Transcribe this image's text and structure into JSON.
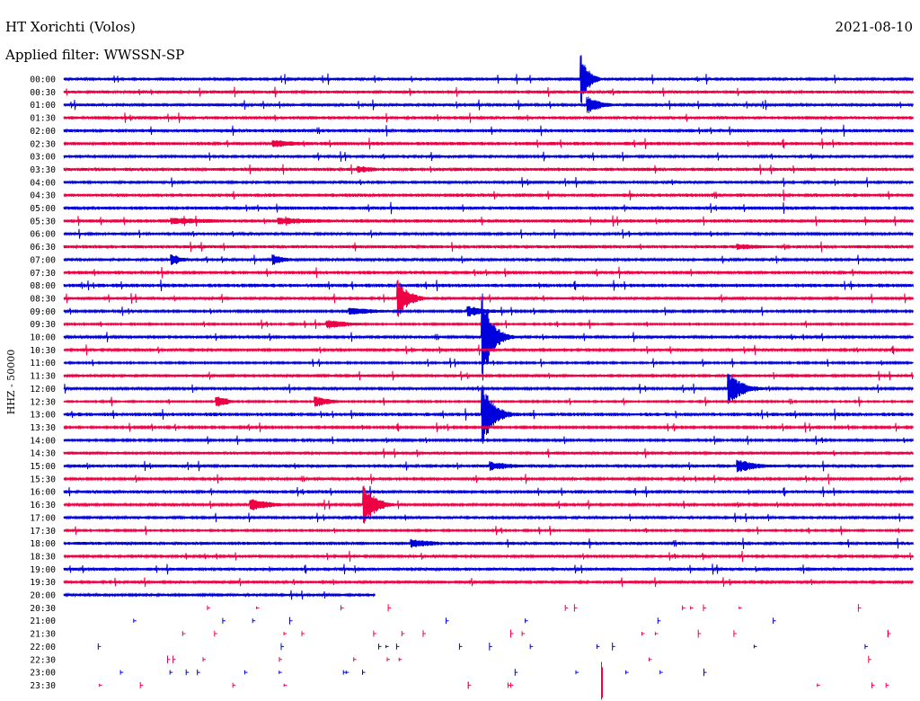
{
  "header": {
    "station": "HT Xorichti (Volos)",
    "date": "2021-08-10",
    "filter": "Applied filter: WWSSN-SP"
  },
  "channel_label": "HHZ - 50000",
  "colors": {
    "even_row": "#0000dd",
    "odd_row": "#ee0044",
    "background": "#ffffff",
    "text": "#000000"
  },
  "chart_data": {
    "type": "line",
    "title": "HT Xorichti (Volos)",
    "subtitle": "Applied filter: WWSSN-SP",
    "date": "2021-08-10",
    "ylabel": "HHZ - 50000",
    "rows": [
      "00:00",
      "00:30",
      "01:00",
      "01:30",
      "02:00",
      "02:30",
      "03:00",
      "03:30",
      "04:00",
      "04:30",
      "05:00",
      "05:30",
      "06:00",
      "06:30",
      "07:00",
      "07:30",
      "08:00",
      "08:30",
      "09:00",
      "09:30",
      "10:00",
      "10:30",
      "11:00",
      "11:30",
      "12:00",
      "12:30",
      "13:00",
      "13:30",
      "14:00",
      "14:30",
      "15:00",
      "15:30",
      "16:00",
      "16:30",
      "17:00",
      "17:30",
      "18:00",
      "18:30",
      "19:00",
      "19:30",
      "20:00",
      "20:30",
      "21:00",
      "21:30",
      "22:00",
      "22:30",
      "23:00",
      "23:30"
    ],
    "row_minutes": 30,
    "continuous_until_minute": 11,
    "events": [
      {
        "row": 0,
        "minute": 18.3,
        "amp": 28,
        "span": 1.3,
        "decay": 0.25
      },
      {
        "row": 2,
        "minute": 18.5,
        "amp": 10,
        "span": 1.5,
        "decay": 0.5
      },
      {
        "row": 5,
        "minute": 7.4,
        "amp": 5,
        "span": 1.2,
        "decay": 1
      },
      {
        "row": 7,
        "minute": 10.4,
        "amp": 4,
        "span": 0.6,
        "decay": 1
      },
      {
        "row": 11,
        "minute": 3.8,
        "amp": 4,
        "span": 6,
        "decay": 2
      },
      {
        "row": 11,
        "minute": 7.6,
        "amp": 4,
        "span": 4,
        "decay": 2
      },
      {
        "row": 13,
        "minute": 23.8,
        "amp": 4,
        "span": 2.5,
        "decay": 1
      },
      {
        "row": 14,
        "minute": 3.8,
        "amp": 6,
        "span": 0.5,
        "decay": 0.5
      },
      {
        "row": 14,
        "minute": 7.4,
        "amp": 6,
        "span": 0.6,
        "decay": 0.5
      },
      {
        "row": 17,
        "minute": 11.8,
        "amp": 22,
        "span": 1.3,
        "decay": 0.4
      },
      {
        "row": 18,
        "minute": 10.1,
        "amp": 5,
        "span": 1.5,
        "decay": 1
      },
      {
        "row": 18,
        "minute": 14.3,
        "amp": 6,
        "span": 1.2,
        "decay": 0.8
      },
      {
        "row": 19,
        "minute": 9.3,
        "amp": 5,
        "span": 1.2,
        "decay": 1
      },
      {
        "row": 20,
        "minute": 14.8,
        "amp": 48,
        "span": 1.8,
        "decay": 0.35
      },
      {
        "row": 24,
        "minute": 23.5,
        "amp": 18,
        "span": 1.6,
        "decay": 0.5
      },
      {
        "row": 25,
        "minute": 5.4,
        "amp": 7,
        "span": 0.5,
        "decay": 0.5
      },
      {
        "row": 25,
        "minute": 8.9,
        "amp": 6,
        "span": 0.7,
        "decay": 0.6
      },
      {
        "row": 26,
        "minute": 14.8,
        "amp": 34,
        "span": 1.6,
        "decay": 0.4
      },
      {
        "row": 30,
        "minute": 15.1,
        "amp": 5,
        "span": 1.2,
        "decay": 1
      },
      {
        "row": 30,
        "minute": 23.8,
        "amp": 8,
        "span": 1.2,
        "decay": 0.7
      },
      {
        "row": 33,
        "minute": 6.6,
        "amp": 7,
        "span": 1.2,
        "decay": 0.8
      },
      {
        "row": 33,
        "minute": 10.6,
        "amp": 24,
        "span": 1.3,
        "decay": 0.4
      },
      {
        "row": 36,
        "minute": 12.3,
        "amp": 5,
        "span": 1,
        "decay": 1
      }
    ]
  }
}
